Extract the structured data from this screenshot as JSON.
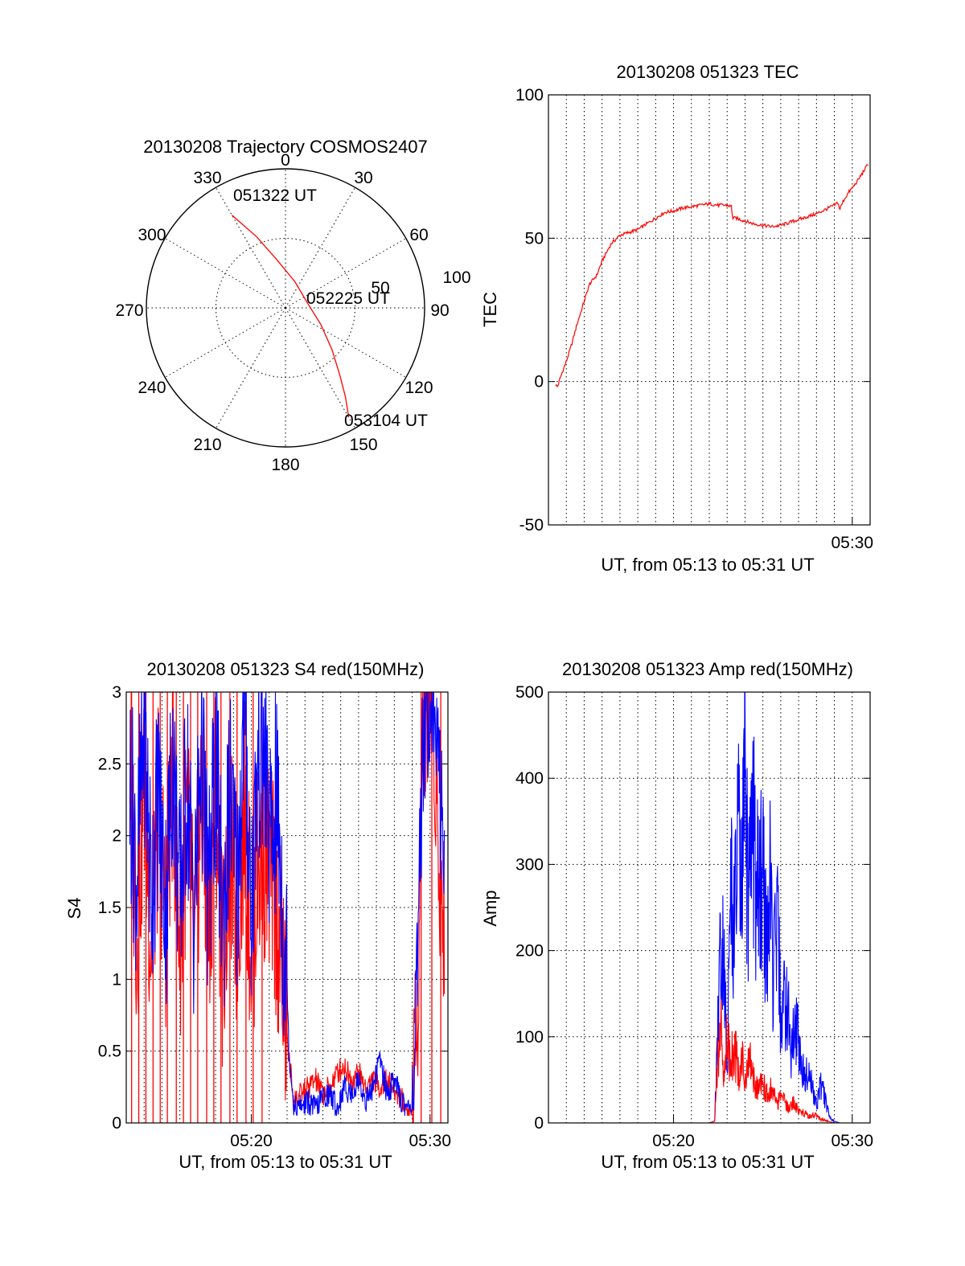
{
  "chart_data": [
    {
      "id": "trajectory",
      "type": "polar",
      "title": "20130208 Trajectory COSMOS2407",
      "azimuth_labels": [
        "0",
        "30",
        "60",
        "90",
        "120",
        "150",
        "180",
        "210",
        "240",
        "270",
        "300",
        "330"
      ],
      "elevation_labels": [
        "50",
        "100"
      ],
      "track": {
        "color": "#ff0000",
        "start": {
          "label": "051322 UT",
          "az": 330,
          "zenith": 77
        },
        "mid": {
          "label": "052225 UT",
          "az": 76,
          "zenith": 16
        },
        "end": {
          "label": "053104 UT",
          "az": 150,
          "zenith": 91
        },
        "points": [
          [
            330,
            77
          ],
          [
            338,
            55
          ],
          [
            350,
            35
          ],
          [
            20,
            20
          ],
          [
            76,
            16
          ],
          [
            115,
            28
          ],
          [
            132,
            45
          ],
          [
            141,
            62
          ],
          [
            146,
            77
          ],
          [
            150,
            91
          ]
        ]
      }
    },
    {
      "id": "tec",
      "type": "line",
      "title": "20130208 051323 TEC",
      "xlabel": "UT, from 05:13 to 05:31 UT",
      "ylabel": "TEC",
      "xlim": [
        13.0,
        31.0
      ],
      "ylim": [
        -50,
        100
      ],
      "yticks": [
        -50,
        0,
        50,
        100
      ],
      "xticks": [
        {
          "v": 30,
          "label": "05:30"
        }
      ],
      "series": [
        {
          "color": "#ff0000",
          "x": [
            13.4,
            13.5,
            13.7,
            14.0,
            14.3,
            14.6,
            15.0,
            15.3,
            15.7,
            16.0,
            16.5,
            17.0,
            17.5,
            18.0,
            18.5,
            19.0,
            19.5,
            20.0,
            20.5,
            21.0,
            21.5,
            22.0,
            22.5,
            23.0,
            23.25,
            23.3,
            23.5,
            24.0,
            24.5,
            25.0,
            25.5,
            26.0,
            26.5,
            27.0,
            27.5,
            28.0,
            28.5,
            29.0,
            29.2,
            29.3,
            29.5,
            29.8,
            30.0,
            30.3,
            30.6,
            30.9
          ],
          "y": [
            -1,
            -2,
            2,
            7,
            13,
            20,
            28,
            34,
            37,
            42,
            48,
            51,
            52,
            53,
            55,
            57,
            59,
            59.5,
            60.5,
            61,
            61.5,
            62,
            61.5,
            61.5,
            61,
            57,
            57,
            56,
            55,
            54.5,
            54,
            54.5,
            55.5,
            56.5,
            57.5,
            58.5,
            60,
            61.5,
            62.5,
            60,
            63,
            66,
            67.5,
            70,
            73,
            76
          ]
        }
      ]
    },
    {
      "id": "s4",
      "type": "line",
      "title": "20130208 051323 S4 red(150MHz)",
      "xlabel": "UT, from 05:13 to 05:31 UT",
      "ylabel": "S4",
      "xlim": [
        13.0,
        31.0
      ],
      "ylim": [
        0,
        3
      ],
      "yticks": [
        {
          "v": 0,
          "label": "0"
        },
        {
          "v": 0.5,
          "label": "0.5"
        },
        {
          "v": 1,
          "label": "1"
        },
        {
          "v": 1.5,
          "label": "1.5"
        },
        {
          "v": 2,
          "label": "2"
        },
        {
          "v": 2.5,
          "label": "2.5"
        },
        {
          "v": 3,
          "label": "3"
        }
      ],
      "xticks": [
        {
          "v": 20,
          "label": "05:20"
        },
        {
          "v": 30,
          "label": "05:30"
        }
      ],
      "series": [
        {
          "color": "#ff0000",
          "x": [
            13.2,
            13.6,
            14.0,
            14.4,
            14.8,
            15.2,
            15.6,
            16.0,
            16.4,
            16.8,
            17.2,
            17.6,
            18.0,
            18.4,
            18.8,
            19.2,
            19.6,
            20.0,
            20.4,
            20.8,
            21.1,
            21.4,
            21.6,
            21.8,
            22.0,
            22.1,
            22.4,
            22.8,
            23.2,
            23.6,
            24.0,
            24.4,
            24.8,
            25.2,
            25.6,
            26.0,
            26.4,
            26.8,
            27.2,
            27.6,
            28.0,
            28.4,
            28.8,
            29.0,
            29.3,
            29.6,
            29.9,
            30.2,
            30.5,
            30.8
          ],
          "y": [
            2.6,
            1.3,
            2.4,
            1.2,
            2.2,
            1.4,
            2.5,
            1.3,
            2.1,
            1.2,
            2.3,
            1.3,
            2.4,
            1.1,
            2.0,
            1.3,
            2.2,
            1.2,
            1.8,
            1.9,
            1.7,
            1.5,
            1.2,
            0.9,
            0.6,
            0.45,
            0.15,
            0.2,
            0.25,
            0.3,
            0.2,
            0.25,
            0.35,
            0.4,
            0.3,
            0.35,
            0.25,
            0.3,
            0.25,
            0.3,
            0.22,
            0.18,
            0.06,
            0.1,
            0.8,
            2.8,
            3.0,
            2.8,
            1.8,
            1.4
          ]
        },
        {
          "color": "#0000ff",
          "x": [
            13.2,
            13.6,
            14.0,
            14.4,
            14.8,
            15.2,
            15.6,
            16.0,
            16.4,
            16.8,
            17.2,
            17.6,
            18.0,
            18.4,
            18.8,
            19.2,
            19.6,
            20.0,
            20.4,
            20.8,
            21.1,
            21.4,
            21.6,
            21.8,
            22.0,
            22.1,
            22.4,
            22.8,
            23.2,
            23.6,
            24.0,
            24.4,
            24.8,
            25.2,
            25.6,
            26.0,
            26.4,
            26.8,
            27.2,
            27.6,
            28.0,
            28.4,
            28.8,
            29.0,
            29.3,
            29.6,
            29.9,
            30.2,
            30.5,
            30.8
          ],
          "y": [
            2.4,
            1.7,
            2.8,
            1.6,
            2.3,
            1.5,
            2.6,
            1.5,
            2.4,
            1.4,
            2.7,
            1.5,
            2.5,
            1.4,
            2.3,
            1.6,
            2.9,
            1.5,
            2.6,
            2.5,
            1.8,
            2.3,
            1.9,
            1.3,
            1.0,
            0.5,
            0.1,
            0.12,
            0.15,
            0.1,
            0.18,
            0.2,
            0.1,
            0.25,
            0.2,
            0.3,
            0.15,
            0.25,
            0.45,
            0.2,
            0.3,
            0.15,
            0.1,
            0.15,
            0.9,
            2.7,
            3.0,
            2.9,
            2.4,
            1.9
          ]
        }
      ],
      "spikes": {
        "color": "#ff0000",
        "x": [
          13.3,
          13.7,
          14.1,
          14.5,
          14.9,
          15.3,
          15.8,
          16.2,
          16.6,
          17.0,
          17.5,
          17.9,
          18.3,
          18.8,
          19.2,
          19.7,
          20.1,
          20.6,
          29.5,
          30.1,
          30.6
        ]
      }
    },
    {
      "id": "amp",
      "type": "line",
      "title": "20130208 051323 Amp red(150MHz)",
      "xlabel": "UT, from 05:13 to 05:31 UT",
      "ylabel": "Amp",
      "xlim": [
        13.0,
        31.0
      ],
      "ylim": [
        0,
        500
      ],
      "yticks": [
        0,
        100,
        200,
        300,
        400,
        500
      ],
      "xticks": [
        {
          "v": 20,
          "label": "05:20"
        },
        {
          "v": 30,
          "label": "05:30"
        }
      ],
      "series": [
        {
          "color": "#0000ff",
          "x": [
            13.0,
            18.0,
            22.0,
            22.3,
            22.5,
            22.7,
            22.9,
            23.0,
            23.2,
            23.4,
            23.6,
            23.8,
            24.0,
            24.2,
            24.4,
            24.6,
            24.8,
            25.0,
            25.2,
            25.4,
            25.6,
            25.8,
            26.0,
            26.3,
            26.6,
            26.9,
            27.2,
            27.5,
            27.8,
            28.0,
            28.2,
            28.4,
            28.6,
            28.8,
            29.0,
            29.3,
            31.0
          ],
          "y": [
            0,
            0,
            0,
            2,
            140,
            250,
            180,
            50,
            300,
            220,
            360,
            260,
            420,
            240,
            380,
            300,
            260,
            330,
            200,
            280,
            170,
            250,
            130,
            150,
            90,
            120,
            60,
            70,
            40,
            20,
            50,
            35,
            20,
            5,
            2,
            0,
            0
          ]
        },
        {
          "color": "#ff0000",
          "x": [
            13.0,
            18.0,
            22.0,
            22.3,
            22.5,
            22.6,
            22.8,
            23.0,
            23.2,
            23.4,
            23.6,
            23.8,
            24.0,
            24.3,
            24.6,
            24.9,
            25.2,
            25.5,
            25.8,
            26.1,
            26.4,
            26.7,
            27.0,
            27.3,
            27.6,
            27.9,
            28.2,
            28.5,
            28.8,
            29.0,
            31.0
          ],
          "y": [
            0,
            0,
            0,
            2,
            80,
            130,
            60,
            110,
            70,
            100,
            60,
            80,
            55,
            70,
            45,
            55,
            35,
            40,
            25,
            30,
            20,
            25,
            15,
            12,
            8,
            10,
            5,
            3,
            1,
            0,
            0
          ]
        }
      ]
    }
  ]
}
